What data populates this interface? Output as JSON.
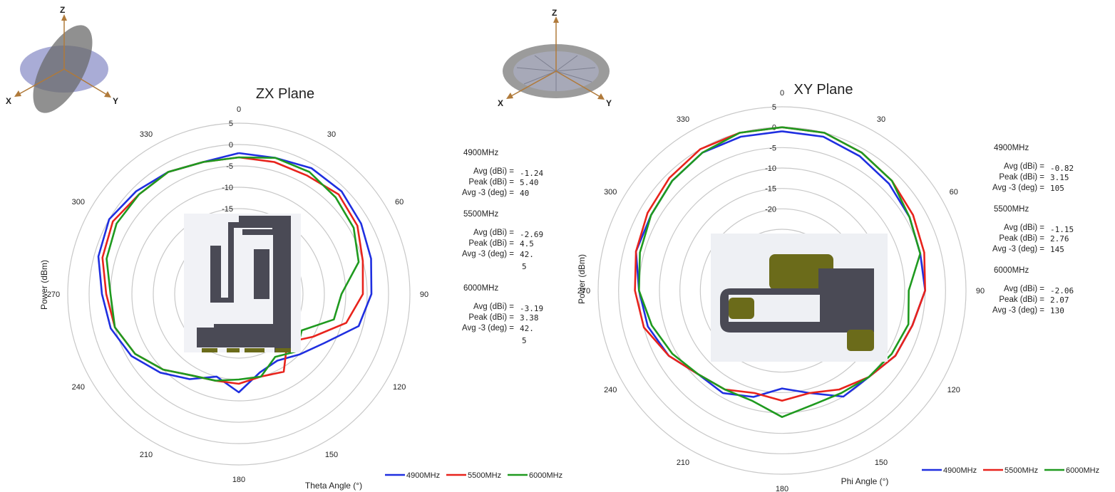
{
  "colors": {
    "s4900": "#1f2fe0",
    "s5500": "#e8231c",
    "s6000": "#1f9a1f",
    "grid": "#c8c8c8",
    "antenna": "#4a4a55",
    "antenna2": "#6b6b1a"
  },
  "chart_data": [
    {
      "type": "polar-line",
      "title": "ZX Plane",
      "xlabel": "Theta Angle (°)",
      "ylabel": "Power (dBm)",
      "angle_ticks": [
        "0",
        "30",
        "60",
        "90",
        "120",
        "150",
        "180",
        "210",
        "240",
        "270",
        "300",
        "330"
      ],
      "radial_ticks": [
        "5",
        "0",
        "-5",
        "-10",
        "-15"
      ],
      "rlim": [
        -35,
        5
      ],
      "legend": [
        "4900MHz",
        "5500MHz",
        "6000MHz"
      ],
      "stats": [
        {
          "name": "4900MHz",
          "avg_label": "Avg (dBi) =",
          "avg": "-1.24",
          "peak_label": "Peak (dBi) =",
          "peak": "5.40",
          "bw_label": "Avg -3 (deg) =",
          "bw": "40",
          "bw2": ""
        },
        {
          "name": "5500MHz",
          "avg_label": "Avg (dBi) =",
          "avg": "-2.69",
          "peak_label": "Peak (dBi) =",
          "peak": "4.5",
          "bw_label": "Avg -3 (deg) =",
          "bw": "42.",
          "bw2": "5"
        },
        {
          "name": "6000MHz",
          "avg_label": "Avg (dBi) =",
          "avg": "-3.19",
          "peak_label": "Peak (dBi) =",
          "peak": "3.38",
          "bw_label": "Avg -3 (deg) =",
          "bw": "42.",
          "bw2": "5"
        }
      ],
      "series": [
        {
          "name": "4900MHz",
          "angles_deg": [
            0,
            15,
            30,
            45,
            60,
            75,
            90,
            105,
            120,
            135,
            150,
            165,
            180,
            195,
            210,
            225,
            240,
            255,
            270,
            285,
            300,
            315,
            330,
            345
          ],
          "values": [
            -2,
            -2,
            -1,
            -1,
            -2,
            -3,
            -4,
            -6,
            -12,
            -15,
            -17,
            -16,
            -12,
            -15,
            -12,
            -9,
            -6,
            -4,
            -3,
            -1,
            0,
            -1,
            -2,
            -3
          ]
        },
        {
          "name": "5500MHz",
          "angles_deg": [
            0,
            15,
            30,
            45,
            60,
            75,
            90,
            105,
            120,
            135,
            150,
            165,
            180,
            195,
            210,
            225,
            240,
            255,
            270,
            285,
            300,
            315,
            330,
            345
          ],
          "values": [
            -3,
            -3,
            -3,
            -2,
            -3,
            -5,
            -6,
            -9,
            -15,
            -19,
            -14,
            -15,
            -14,
            -14,
            -13,
            -10,
            -7,
            -5,
            -4,
            -2,
            -1,
            -2,
            -2,
            -3
          ]
        },
        {
          "name": "6000MHz",
          "angles_deg": [
            0,
            15,
            30,
            45,
            60,
            75,
            90,
            105,
            120,
            135,
            150,
            165,
            180,
            195,
            210,
            225,
            240,
            255,
            270,
            285,
            300,
            315,
            330,
            345
          ],
          "values": [
            -3,
            -2,
            -2,
            -3,
            -4,
            -6,
            -11,
            -12,
            -18,
            -16,
            -18,
            -15,
            -15,
            -14,
            -13,
            -10,
            -7,
            -5,
            -5,
            -3,
            -2,
            -2,
            -2,
            -3
          ]
        }
      ]
    },
    {
      "type": "polar-line",
      "title": "XY Plane",
      "xlabel": "Phi Angle (°)",
      "ylabel": "Power (dBm)",
      "angle_ticks": [
        "0",
        "30",
        "60",
        "90",
        "120",
        "150",
        "180",
        "210",
        "240",
        "270",
        "300",
        "330"
      ],
      "radial_ticks": [
        "5",
        "0",
        "-5",
        "-10",
        "-15",
        "-20"
      ],
      "rlim": [
        -40,
        5
      ],
      "legend": [
        "4900MHz",
        "5500MHz",
        "6000MHz"
      ],
      "stats": [
        {
          "name": "4900MHz",
          "avg_label": "Avg (dBi) =",
          "avg": "-0.82",
          "peak_label": "Peak (dBi) =",
          "peak": "3.15",
          "bw_label": "Avg -3 (deg) =",
          "bw": "105",
          "bw2": ""
        },
        {
          "name": "5500MHz",
          "avg_label": "Avg (dBi) =",
          "avg": "-1.15",
          "peak_label": "Peak (dBi) =",
          "peak": "2.76",
          "bw_label": "Avg -3 (deg) =",
          "bw": "145",
          "bw2": ""
        },
        {
          "name": "6000MHz",
          "avg_label": "Avg (dBi) =",
          "avg": "-2.06",
          "peak_label": "Peak (dBi) =",
          "peak": "2.07",
          "bw_label": "Avg -3 (deg) =",
          "bw": "130",
          "bw2": ""
        }
      ],
      "series": [
        {
          "name": "4900MHz",
          "angles_deg": [
            0,
            15,
            30,
            45,
            60,
            75,
            90,
            105,
            120,
            135,
            150,
            165,
            180,
            195,
            210,
            225,
            240,
            255,
            270,
            285,
            300,
            315,
            330,
            345
          ],
          "values": [
            -1,
            -1,
            -2,
            -3,
            -4,
            -5,
            -5,
            -7,
            -8,
            -10,
            -10,
            -14,
            -16,
            -13,
            -11,
            -11,
            -8,
            -6,
            -5,
            -3,
            -3,
            -2,
            -1,
            -1
          ]
        },
        {
          "name": "5500MHz",
          "angles_deg": [
            0,
            15,
            30,
            45,
            60,
            75,
            90,
            105,
            120,
            135,
            150,
            165,
            180,
            195,
            210,
            225,
            240,
            255,
            270,
            285,
            300,
            315,
            330,
            345
          ],
          "values": [
            0,
            0,
            -1,
            -2,
            -3,
            -4,
            -5,
            -7,
            -8,
            -10,
            -12,
            -14,
            -13,
            -14,
            -12,
            -11,
            -8,
            -5,
            -4,
            -3,
            -2,
            -1,
            0,
            0
          ]
        },
        {
          "name": "6000MHz",
          "angles_deg": [
            0,
            15,
            30,
            45,
            60,
            75,
            90,
            105,
            120,
            135,
            150,
            165,
            180,
            195,
            210,
            225,
            240,
            255,
            270,
            285,
            300,
            315,
            330,
            345
          ],
          "values": [
            0,
            0,
            -1,
            -2,
            -4,
            -5,
            -9,
            -8,
            -9,
            -10,
            -11,
            -11,
            -9,
            -12,
            -12,
            -11,
            -9,
            -7,
            -5,
            -4,
            -3,
            -2,
            -1,
            0
          ]
        }
      ]
    }
  ],
  "axes_icons": [
    {
      "z": "Z",
      "x": "X",
      "y": "Y"
    },
    {
      "z": "Z",
      "x": "X",
      "y": "Y"
    }
  ]
}
